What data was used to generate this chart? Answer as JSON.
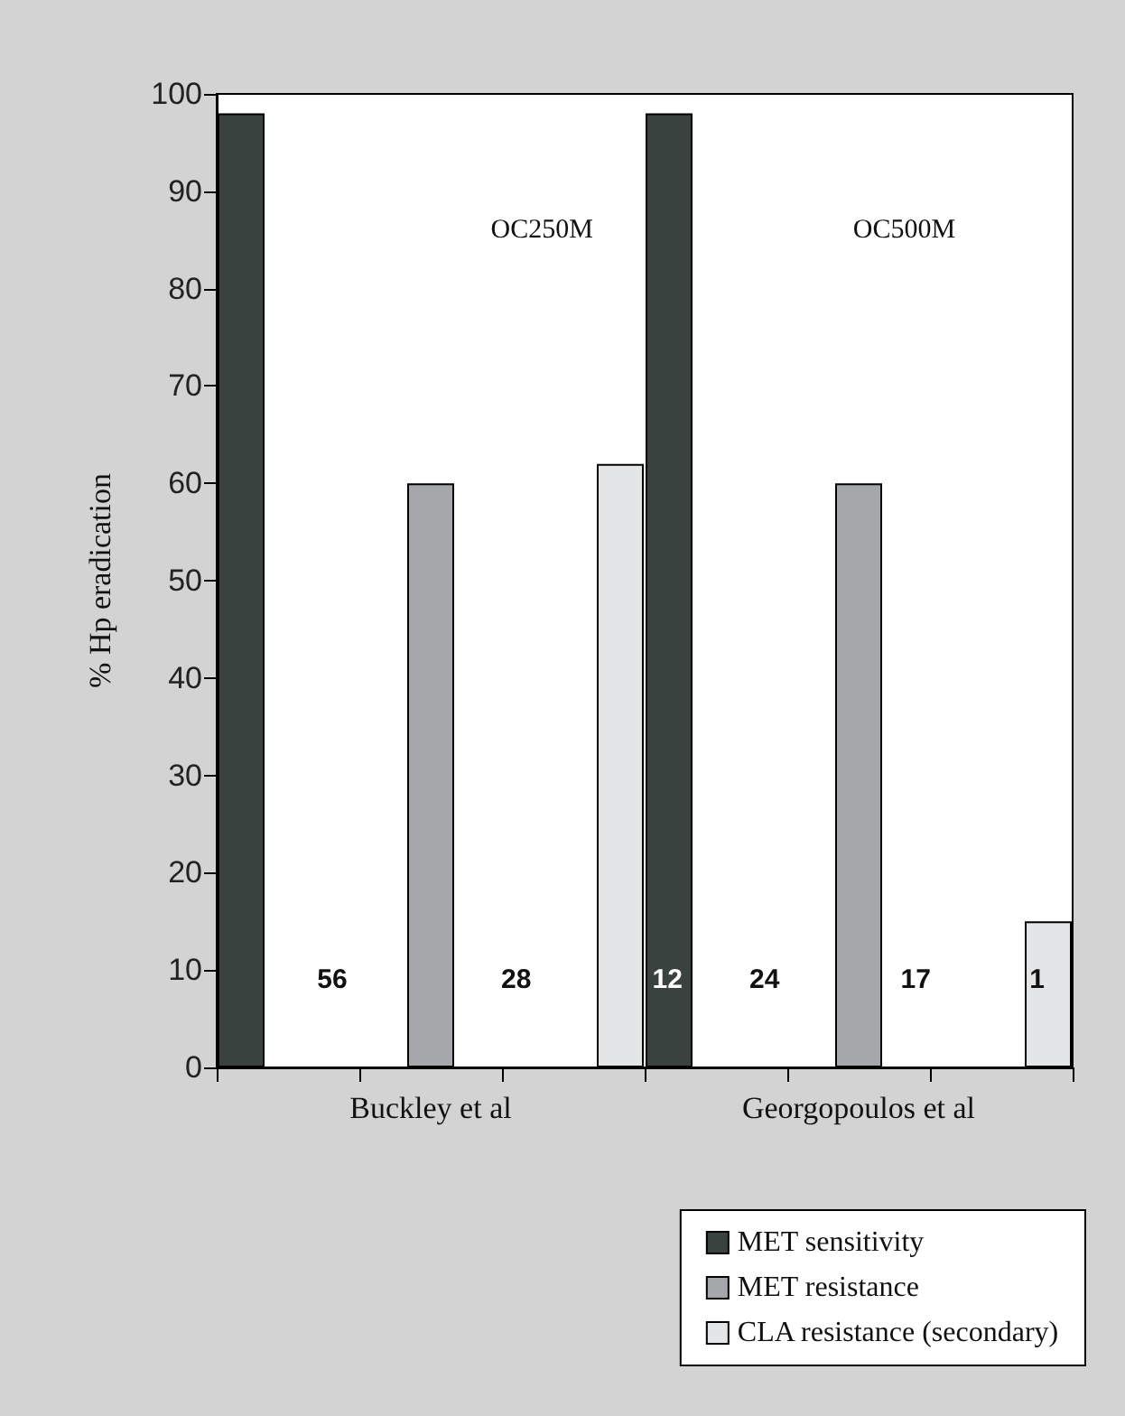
{
  "chart_data": {
    "type": "bar",
    "ylabel": "% Hp eradication",
    "categories": [
      null,
      "Buckley et al",
      null,
      null,
      "Georgopoulos et al",
      null
    ],
    "series": [
      {
        "name": "MET sensitivity",
        "color": "#3a4240",
        "values": [
          98,
          0,
          0,
          98,
          0,
          0
        ]
      },
      {
        "name": "MET resistance",
        "color": "#a6a7ab",
        "values": [
          0,
          60,
          0,
          0,
          60,
          0
        ]
      },
      {
        "name": "CLA resistance (secondary)",
        "color": "#e4e5e7",
        "values": [
          0,
          0,
          62,
          0,
          0,
          15
        ]
      }
    ],
    "annotations": [
      "OC250M",
      "OC500M",
      "56",
      "28",
      "12",
      "24",
      "17",
      "1"
    ],
    "ylim": [
      0,
      100
    ],
    "yticks": [
      0,
      10,
      20,
      30,
      40,
      50,
      60,
      70,
      80,
      90,
      100
    ],
    "grid": false,
    "legend": "bottom right"
  }
}
